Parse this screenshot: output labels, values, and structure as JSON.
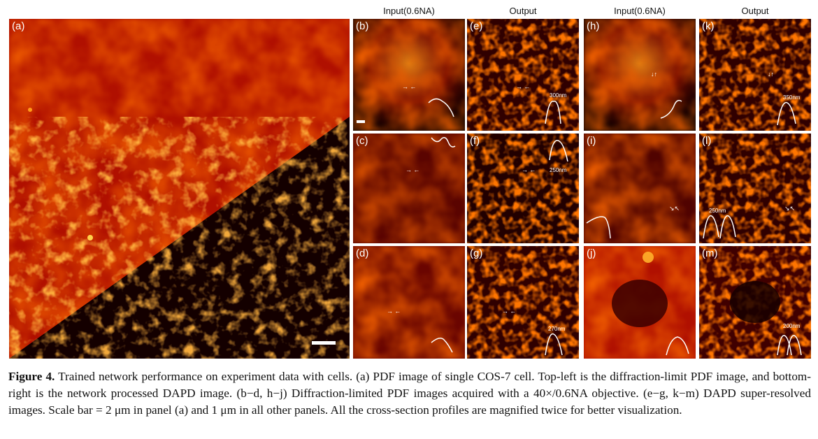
{
  "column_headers": [
    "Input(0.6NA)",
    "Output",
    "Input(0.6NA)",
    "Output"
  ],
  "panels": {
    "a": "(a)",
    "b": "(b)",
    "c": "(c)",
    "d": "(d)",
    "e": "(e)",
    "f": "(f)",
    "g": "(g)",
    "h": "(h)",
    "i": "(i)",
    "j": "(j)",
    "k": "(k)",
    "l": "(l)",
    "m": "(m)"
  },
  "measurements": {
    "e": "300nm",
    "f": "250nm",
    "g": "270nm",
    "k": "350nm",
    "l": "250nm",
    "m": "200nm"
  },
  "caption": {
    "label": "Figure 4.",
    "text": " Trained network performance on experiment data with cells. (a) PDF image of single COS-7 cell. Top-left is the diffraction-limit PDF image, and bottom-right is the network processed DAPD image. (b−d, h−j) Diffraction-limited PDF images acquired with a 40×/0.6NA objective. (e−g, k−m) DAPD super-resolved images. Scale bar = 2 μm in panel (a) and 1 μm in all other panels. All the cross-section profiles are magnified twice for better visualization."
  },
  "colors": {
    "hot_low": "#2a0000",
    "hot_mid": "#c41200",
    "hot_high": "#ff7a00",
    "hot_peak": "#ffd24a"
  }
}
